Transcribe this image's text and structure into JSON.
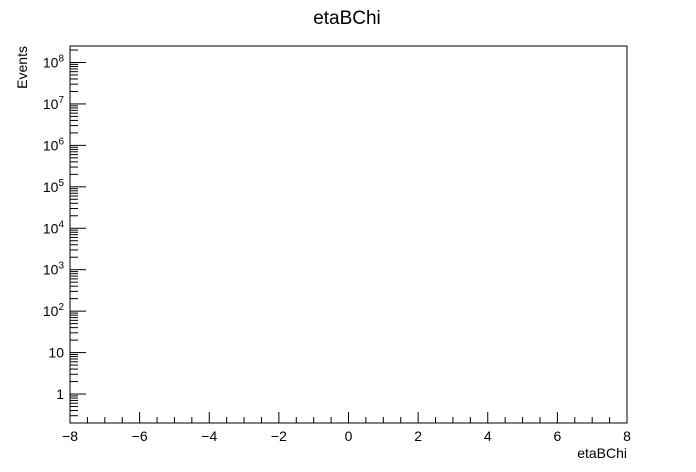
{
  "chart_data": {
    "type": "bar",
    "title": "etaBChi",
    "xlabel": "etaBChi",
    "ylabel": "Events",
    "xlim": [
      -8,
      8
    ],
    "ylim": [
      0.2,
      250000000
    ],
    "yscale": "log",
    "grid": false,
    "legend": "none",
    "x_tick_labels": [
      "−8",
      "−6",
      "−4",
      "−2",
      "0",
      "2",
      "4",
      "6",
      "8"
    ],
    "x_tick_values": [
      -8,
      -6,
      -4,
      -2,
      0,
      2,
      4,
      6,
      8
    ],
    "y_tick_labels": [
      {
        "base": "1",
        "exp": ""
      },
      {
        "base": "10",
        "exp": ""
      },
      {
        "base": "10",
        "exp": "2"
      },
      {
        "base": "10",
        "exp": "3"
      },
      {
        "base": "10",
        "exp": "4"
      },
      {
        "base": "10",
        "exp": "5"
      },
      {
        "base": "10",
        "exp": "6"
      },
      {
        "base": "10",
        "exp": "7"
      },
      {
        "base": "10",
        "exp": "8"
      }
    ],
    "y_tick_values": [
      1,
      10,
      100,
      1000,
      10000,
      100000,
      1000000,
      10000000,
      100000000
    ],
    "series": []
  }
}
